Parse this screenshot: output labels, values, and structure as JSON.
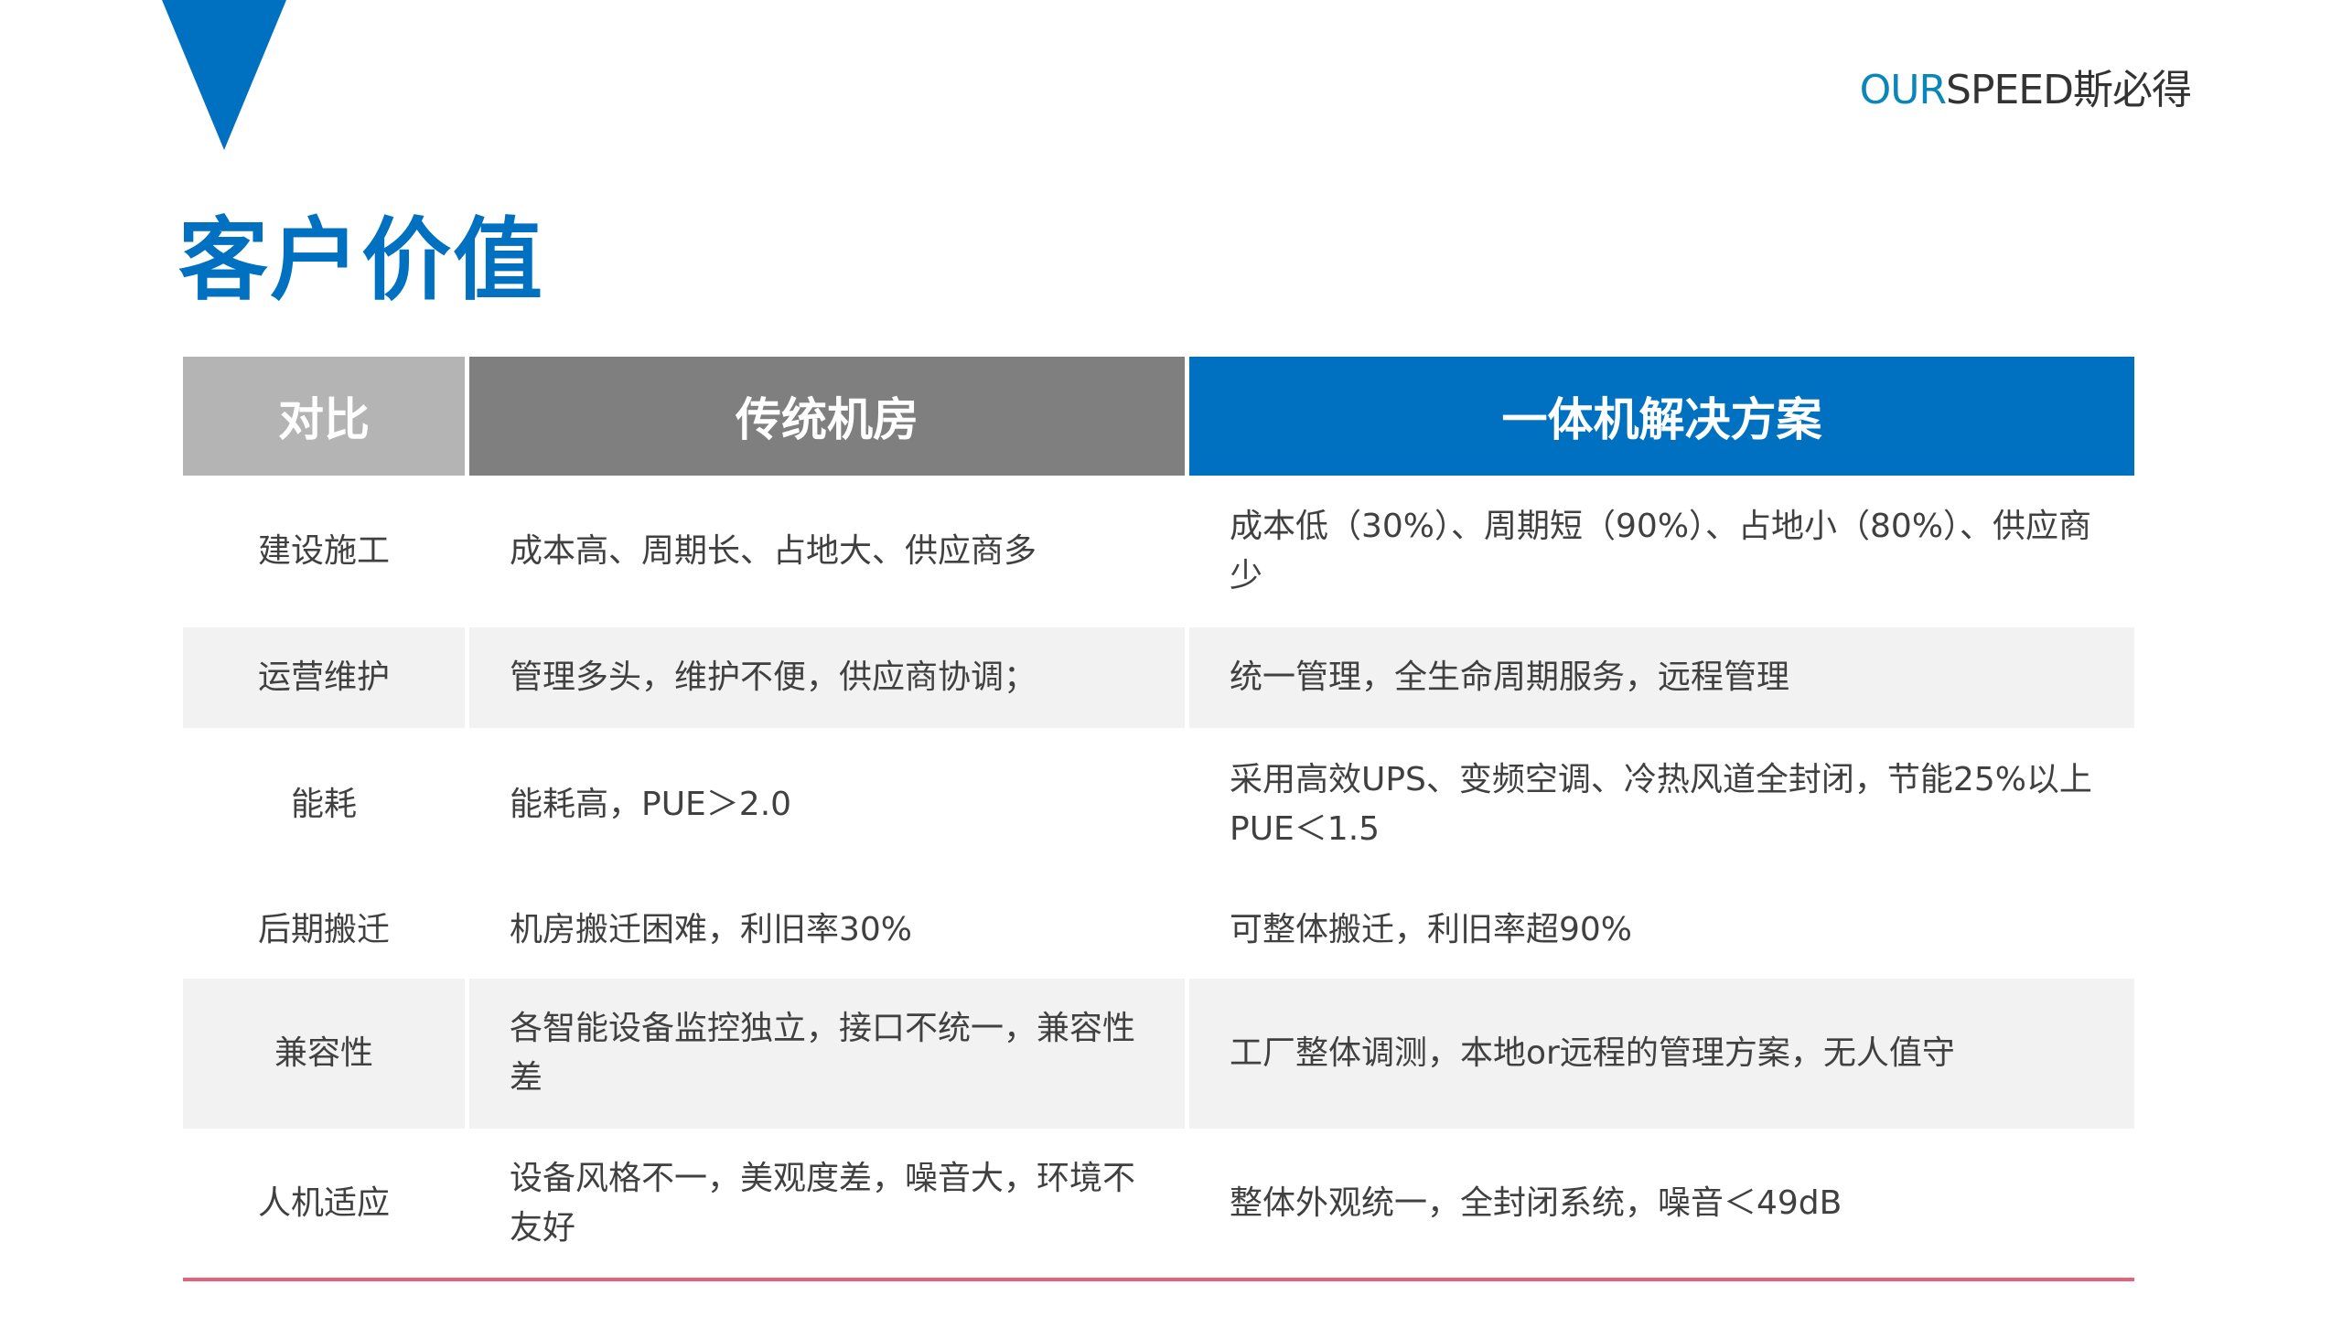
{
  "logo": {
    "prefix": "OUR",
    "rest": "SPEED斯必得"
  },
  "title": "客户价值",
  "table": {
    "headers": [
      "对比",
      "传统机房",
      "一体机解决方案"
    ],
    "rows": [
      {
        "item": "建设施工",
        "traditional": "成本高、周期长、占地大、供应商多",
        "solution": "成本低（30%）、周期短（90%）、占地小（80%）、供应商少"
      },
      {
        "item": "运营维护",
        "traditional": "管理多头，维护不便，供应商协调；",
        "solution": "统一管理，全生命周期服务，远程管理"
      },
      {
        "item": "能耗",
        "traditional": "能耗高，PUE＞2.0",
        "solution": "采用高效UPS、变频空调、冷热风道全封闭，节能25%以上PUE＜1.5"
      },
      {
        "item": "后期搬迁",
        "traditional": "机房搬迁困难，利旧率30%",
        "solution": "可整体搬迁，利旧率超90%"
      },
      {
        "item": "兼容性",
        "traditional": "各智能设备监控独立，接口不统一，兼容性差",
        "solution": "工厂整体调测，本地or远程的管理方案，无人值守"
      },
      {
        "item": "人机适应",
        "traditional": "设备风格不一，美观度差，噪音大，环境不友好",
        "solution": "整体外观统一，全封闭系统，噪音＜49dB"
      }
    ]
  },
  "colors": {
    "accent": "#0070c0",
    "header_gray_light": "#b4b4b4",
    "header_gray_dark": "#7f7f7f",
    "row_alt": "#f2f2f2",
    "bottom_rule": "#e8607a"
  }
}
